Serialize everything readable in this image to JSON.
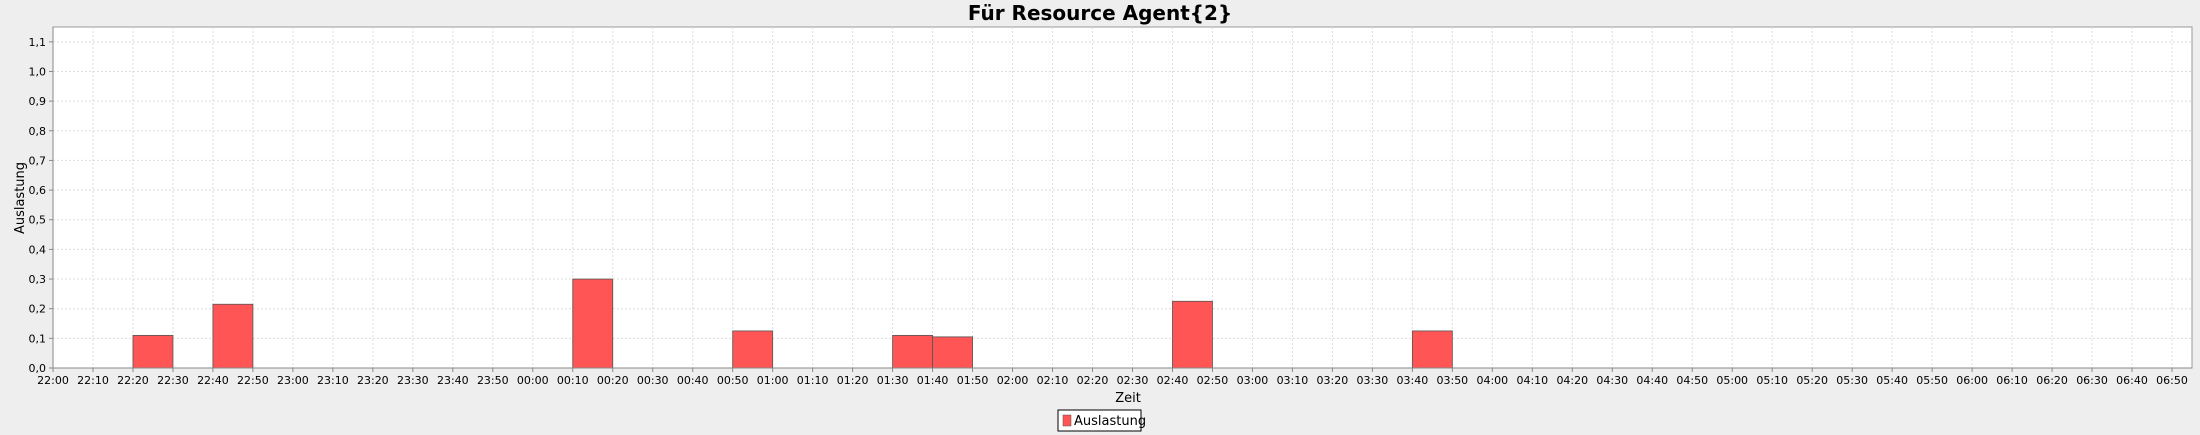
{
  "chart_data": {
    "type": "bar",
    "title": "Für Resource Agent{2}",
    "xlabel": "Zeit",
    "ylabel": "Auslastung",
    "ylim": [
      0,
      1.15
    ],
    "yticks": [
      "0,0",
      "0,1",
      "0,2",
      "0,3",
      "0,4",
      "0,5",
      "0,6",
      "0,7",
      "0,8",
      "0,9",
      "1,0",
      "1,1"
    ],
    "ytick_values": [
      0,
      0.1,
      0.2,
      0.3,
      0.4,
      0.5,
      0.6,
      0.7,
      0.8,
      0.9,
      1.0,
      1.1
    ],
    "xticks": [
      "22:00",
      "22:10",
      "22:20",
      "22:30",
      "22:40",
      "22:50",
      "23:00",
      "23:10",
      "23:20",
      "23:30",
      "23:40",
      "23:50",
      "00:00",
      "00:10",
      "00:20",
      "00:30",
      "00:40",
      "00:50",
      "01:00",
      "01:10",
      "01:20",
      "01:30",
      "01:40",
      "01:50",
      "02:00",
      "02:10",
      "02:20",
      "02:30",
      "02:40",
      "02:50",
      "03:00",
      "03:10",
      "03:20",
      "03:30",
      "03:40",
      "03:50",
      "04:00",
      "04:10",
      "04:20",
      "04:30",
      "04:40",
      "04:50",
      "05:00",
      "05:10",
      "05:20",
      "05:30",
      "05:40",
      "05:50",
      "06:00",
      "06:10",
      "06:20",
      "06:30",
      "06:40",
      "06:50"
    ],
    "grid": true,
    "legend_position": "bottom-center",
    "series": [
      {
        "name": "Auslastung",
        "color": "#ff5555",
        "bars": [
          {
            "start": "22:20",
            "end": "22:30",
            "value": 0.11
          },
          {
            "start": "22:40",
            "end": "22:50",
            "value": 0.215
          },
          {
            "start": "00:10",
            "end": "00:20",
            "value": 0.3
          },
          {
            "start": "00:50",
            "end": "01:00",
            "value": 0.125
          },
          {
            "start": "01:30",
            "end": "01:40",
            "value": 0.11
          },
          {
            "start": "01:40",
            "end": "01:50",
            "value": 0.105
          },
          {
            "start": "02:40",
            "end": "02:50",
            "value": 0.225
          },
          {
            "start": "03:40",
            "end": "03:50",
            "value": 0.125
          }
        ]
      }
    ]
  }
}
